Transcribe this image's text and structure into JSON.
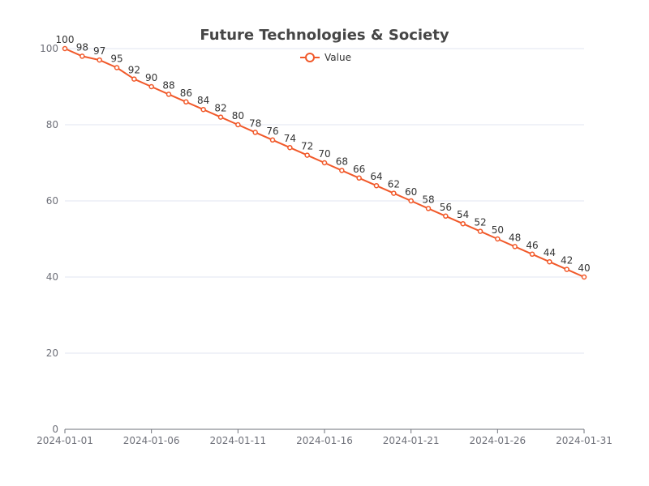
{
  "chart_data": {
    "type": "line",
    "title": "Future Technologies & Society",
    "xlabel": "",
    "ylabel": "",
    "x": [
      "2024-01-01",
      "2024-01-02",
      "2024-01-03",
      "2024-01-04",
      "2024-01-05",
      "2024-01-06",
      "2024-01-07",
      "2024-01-08",
      "2024-01-09",
      "2024-01-10",
      "2024-01-11",
      "2024-01-12",
      "2024-01-13",
      "2024-01-14",
      "2024-01-15",
      "2024-01-16",
      "2024-01-17",
      "2024-01-18",
      "2024-01-19",
      "2024-01-20",
      "2024-01-21",
      "2024-01-22",
      "2024-01-23",
      "2024-01-24",
      "2024-01-25",
      "2024-01-26",
      "2024-01-27",
      "2024-01-28",
      "2024-01-29",
      "2024-01-30",
      "2024-01-31"
    ],
    "x_tick_labels": [
      "2024-01-01",
      "2024-01-06",
      "2024-01-11",
      "2024-01-16",
      "2024-01-21",
      "2024-01-26",
      "2024-01-31"
    ],
    "y_ticks": [
      0,
      20,
      40,
      60,
      80,
      100
    ],
    "ylim": [
      0,
      100
    ],
    "grid": true,
    "legend_position": "top-center",
    "series": [
      {
        "name": "Value",
        "color": "#f1592a",
        "values": [
          100,
          98,
          97,
          95,
          92,
          90,
          88,
          86,
          84,
          82,
          80,
          78,
          76,
          74,
          72,
          70,
          68,
          66,
          64,
          62,
          60,
          58,
          56,
          54,
          52,
          50,
          48,
          46,
          44,
          42,
          40
        ]
      }
    ]
  }
}
